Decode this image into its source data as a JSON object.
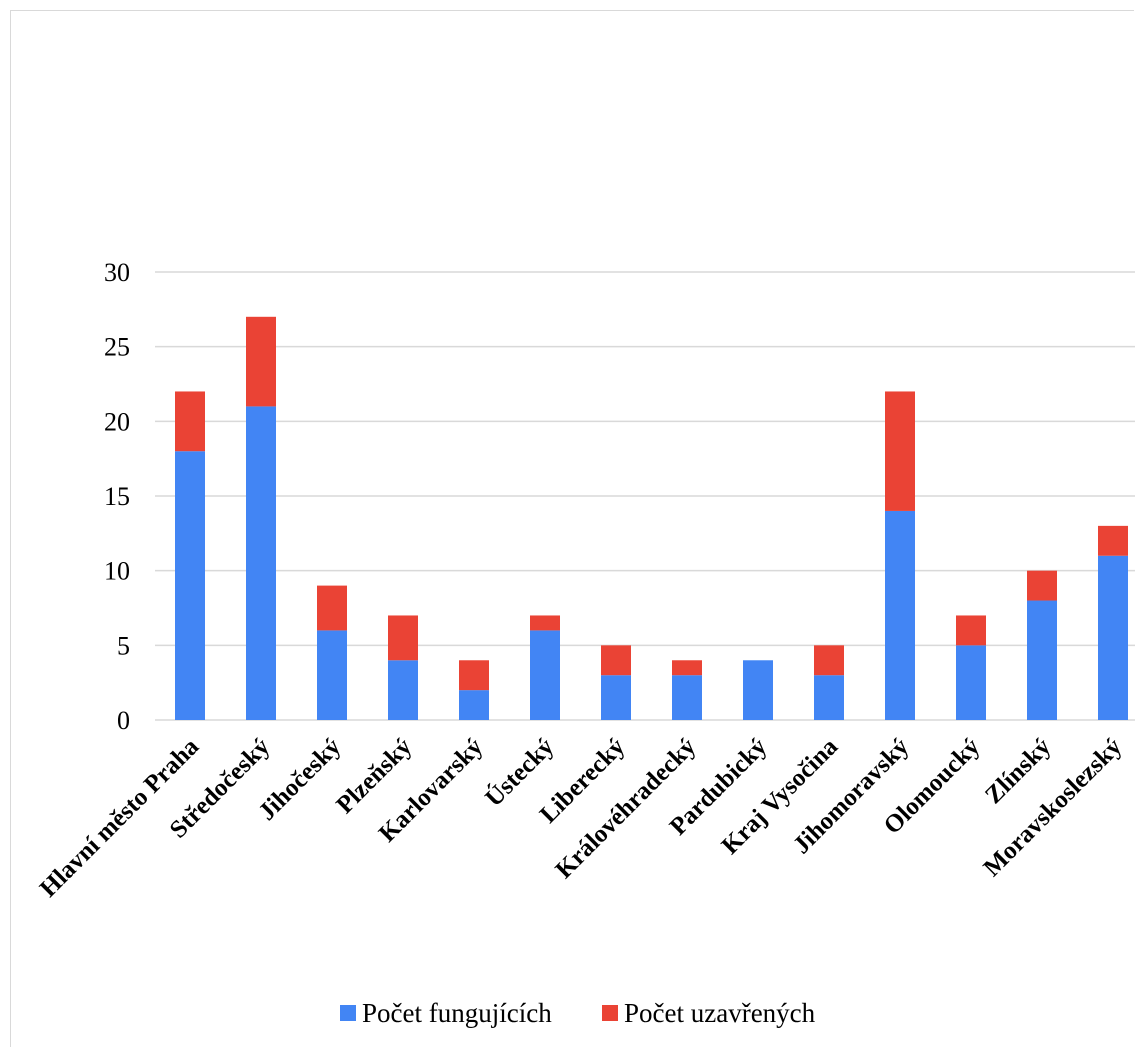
{
  "chart_data": {
    "type": "bar",
    "stacked": true,
    "categories": [
      "Hlavní město Praha",
      "Středočeský",
      "Jihočeský",
      "Plzeňský",
      "Karlovarský",
      "Ústecký",
      "Liberecký",
      "Královéhradecký",
      "Pardubický",
      "Kraj Vysočina",
      "Jihomoravský",
      "Olomoucký",
      "Zlínský",
      "Moravskoslezský"
    ],
    "series": [
      {
        "name": "Počet fungujících",
        "color": "#4285f4",
        "values": [
          18,
          21,
          6,
          4,
          2,
          6,
          3,
          3,
          4,
          3,
          14,
          5,
          8,
          11
        ]
      },
      {
        "name": "Počet uzavřených",
        "color": "#ea4335",
        "values": [
          4,
          6,
          3,
          3,
          2,
          1,
          2,
          1,
          0,
          2,
          8,
          2,
          2,
          2
        ]
      }
    ],
    "yticks": [
      "0",
      "5",
      "10",
      "15",
      "20",
      "25",
      "30"
    ],
    "ylim": [
      0,
      30
    ],
    "grid": true,
    "legend": "bottom"
  }
}
